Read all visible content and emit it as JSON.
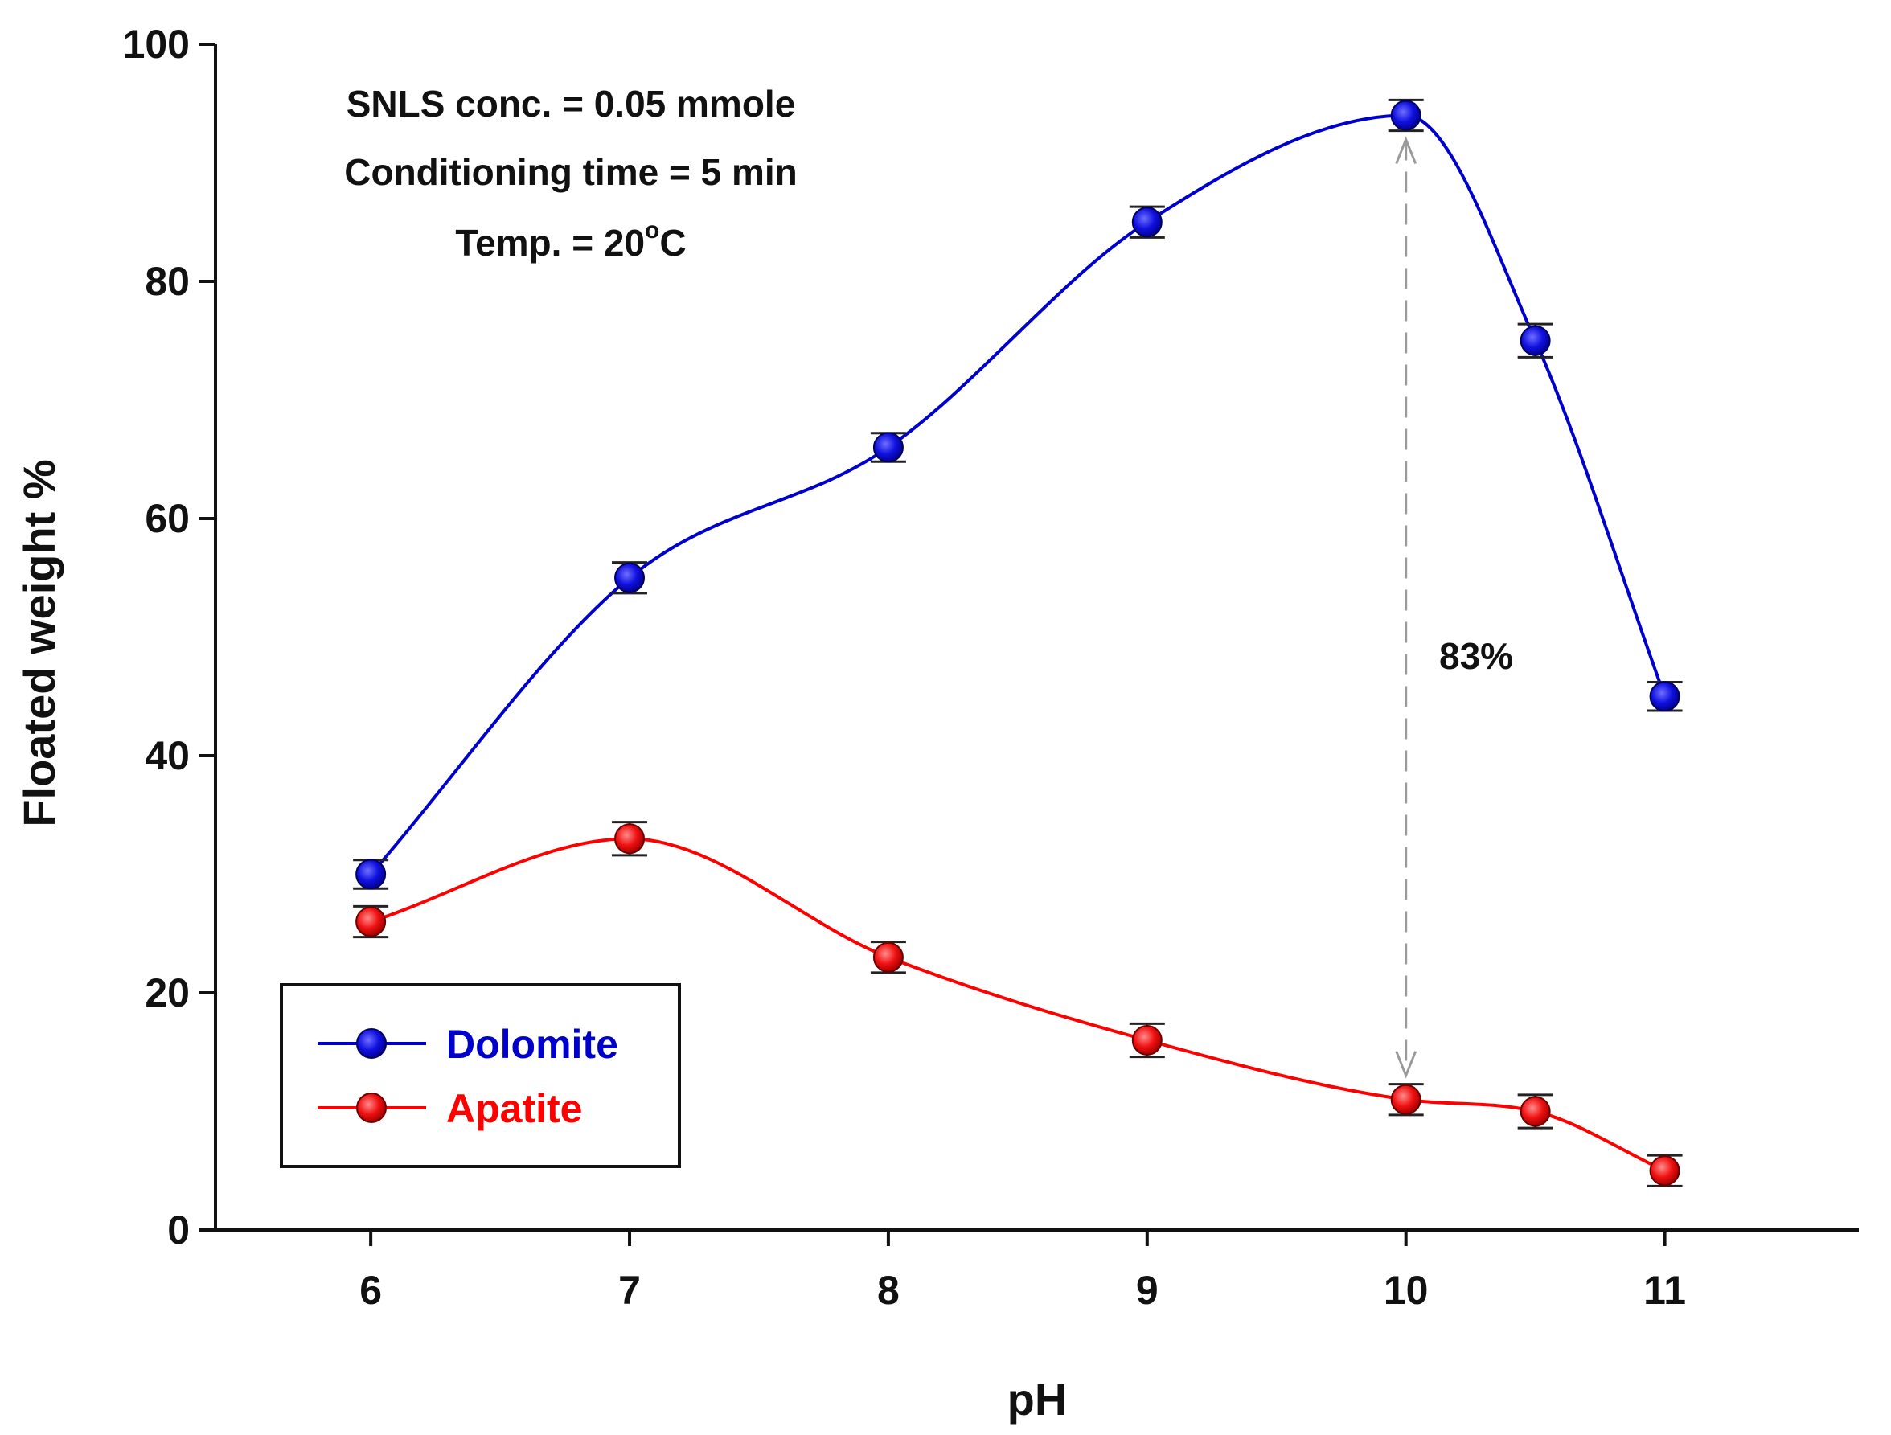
{
  "chart_data": {
    "type": "line",
    "xlabel": "pH",
    "ylabel": "Floated weight %",
    "xlim": [
      5.4,
      11.75
    ],
    "ylim": [
      0,
      100
    ],
    "x_ticks": [
      6,
      7,
      8,
      9,
      10,
      11
    ],
    "x_tick_labels": [
      "6",
      "7",
      "8",
      "9",
      "10",
      "11"
    ],
    "y_ticks": [
      0,
      20,
      40,
      60,
      80,
      100
    ],
    "y_tick_labels": [
      "0",
      "20",
      "40",
      "60",
      "80",
      "100"
    ],
    "grid": false,
    "legend_position": "bottom-left",
    "series": [
      {
        "name": "Dolomite",
        "color": "#0000cc",
        "x": [
          6,
          7,
          8,
          9,
          10,
          10.5,
          11
        ],
        "values": [
          30,
          55,
          66,
          85,
          94,
          75,
          45
        ],
        "error": [
          1.2,
          1.3,
          1.2,
          1.3,
          1.3,
          1.4,
          1.2
        ]
      },
      {
        "name": "Apatite",
        "color": "#ff0000",
        "x": [
          6,
          7,
          8,
          9,
          10,
          10.5,
          11
        ],
        "values": [
          26,
          33,
          23,
          16,
          11,
          10,
          5
        ],
        "error": [
          1.3,
          1.4,
          1.3,
          1.4,
          1.3,
          1.4,
          1.3
        ]
      }
    ],
    "annotations": {
      "conditions": [
        "SNLS conc. = 0.05 mmole",
        "Conditioning time = 5 min"
      ],
      "temp_prefix": "Temp. = 20",
      "temp_degree": "o",
      "temp_unit": "C",
      "difference_label": "83%",
      "difference_arrow_x": 10,
      "difference_arrow_range": [
        11,
        94
      ]
    }
  }
}
